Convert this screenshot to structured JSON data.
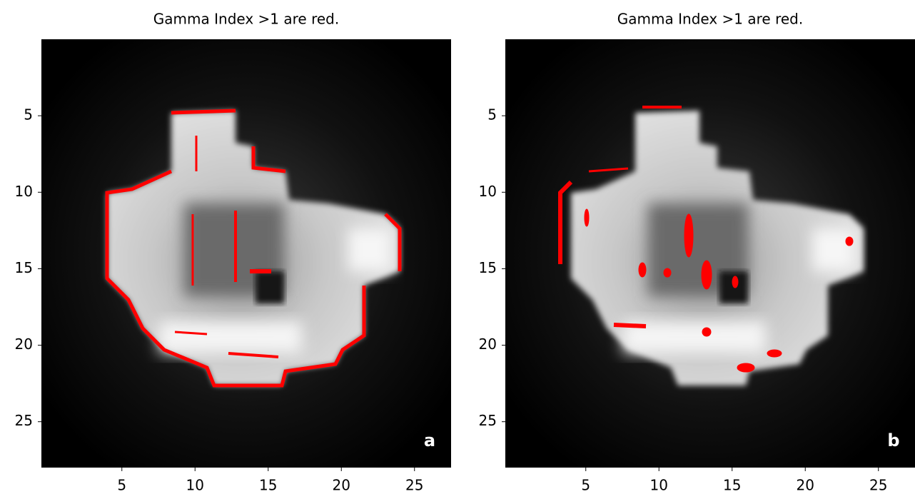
{
  "chart_data": [
    {
      "type": "image",
      "title": "Gamma Index >1 are red.",
      "panel_label": "a",
      "xlim": [
        -0.5,
        27.5
      ],
      "ylim": [
        28,
        0
      ],
      "xticks": [
        5,
        10,
        15,
        20,
        25
      ],
      "yticks": [
        5,
        10,
        15,
        20,
        25
      ]
    },
    {
      "type": "image",
      "title": "Gamma Index >1 are red.",
      "panel_label": "b",
      "xlim": [
        -0.5,
        27.5
      ],
      "ylim": [
        28,
        0
      ],
      "xticks": [
        5,
        10,
        15,
        20,
        25
      ],
      "yticks": [
        5,
        10,
        15,
        20,
        25
      ]
    }
  ]
}
